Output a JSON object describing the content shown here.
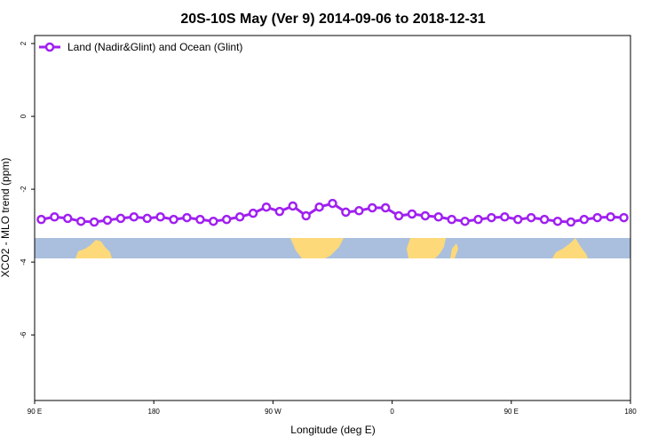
{
  "chart_data": {
    "type": "line",
    "title": "20S-10S May (Ver 9)   2014-09-06 to 2018-12-31",
    "xlabel": "Longitude (deg E)",
    "ylabel": "XCO2 - MLO trend (ppm)",
    "x": [
      95,
      105,
      115,
      125,
      135,
      145,
      155,
      165,
      175,
      185,
      195,
      205,
      215,
      225,
      235,
      245,
      255,
      265,
      275,
      285,
      295,
      305,
      315,
      325,
      335,
      345,
      355,
      365,
      375,
      385,
      395,
      405,
      415,
      425,
      435,
      445,
      455,
      465,
      475,
      485,
      495,
      505,
      515,
      525,
      535
    ],
    "series": [
      {
        "name": "Land (Nadir&Glint) and Ocean (Glint)",
        "color": "#a020f0",
        "values": [
          -2.83,
          -2.76,
          -2.8,
          -2.88,
          -2.9,
          -2.85,
          -2.8,
          -2.76,
          -2.8,
          -2.76,
          -2.83,
          -2.78,
          -2.83,
          -2.88,
          -2.83,
          -2.76,
          -2.66,
          -2.49,
          -2.61,
          -2.46,
          -2.73,
          -2.49,
          -2.39,
          -2.63,
          -2.59,
          -2.51,
          -2.51,
          -2.73,
          -2.68,
          -2.73,
          -2.76,
          -2.83,
          -2.88,
          -2.83,
          -2.78,
          -2.76,
          -2.83,
          -2.78,
          -2.83,
          -2.88,
          -2.9,
          -2.83,
          -2.78,
          -2.76,
          -2.78
        ]
      }
    ],
    "xlim": [
      90,
      540
    ],
    "xticks": [
      {
        "value": 90,
        "label": "90 E"
      },
      {
        "value": 180,
        "label": "180"
      },
      {
        "value": 270,
        "label": "90 W"
      },
      {
        "value": 360,
        "label": "0"
      },
      {
        "value": 450,
        "label": "90 E"
      },
      {
        "value": 540,
        "label": "180"
      }
    ],
    "ylim": [
      -7.8,
      2.22
    ],
    "yticks": [
      2,
      0,
      -2,
      -4,
      -6
    ],
    "legend": "top-left"
  }
}
